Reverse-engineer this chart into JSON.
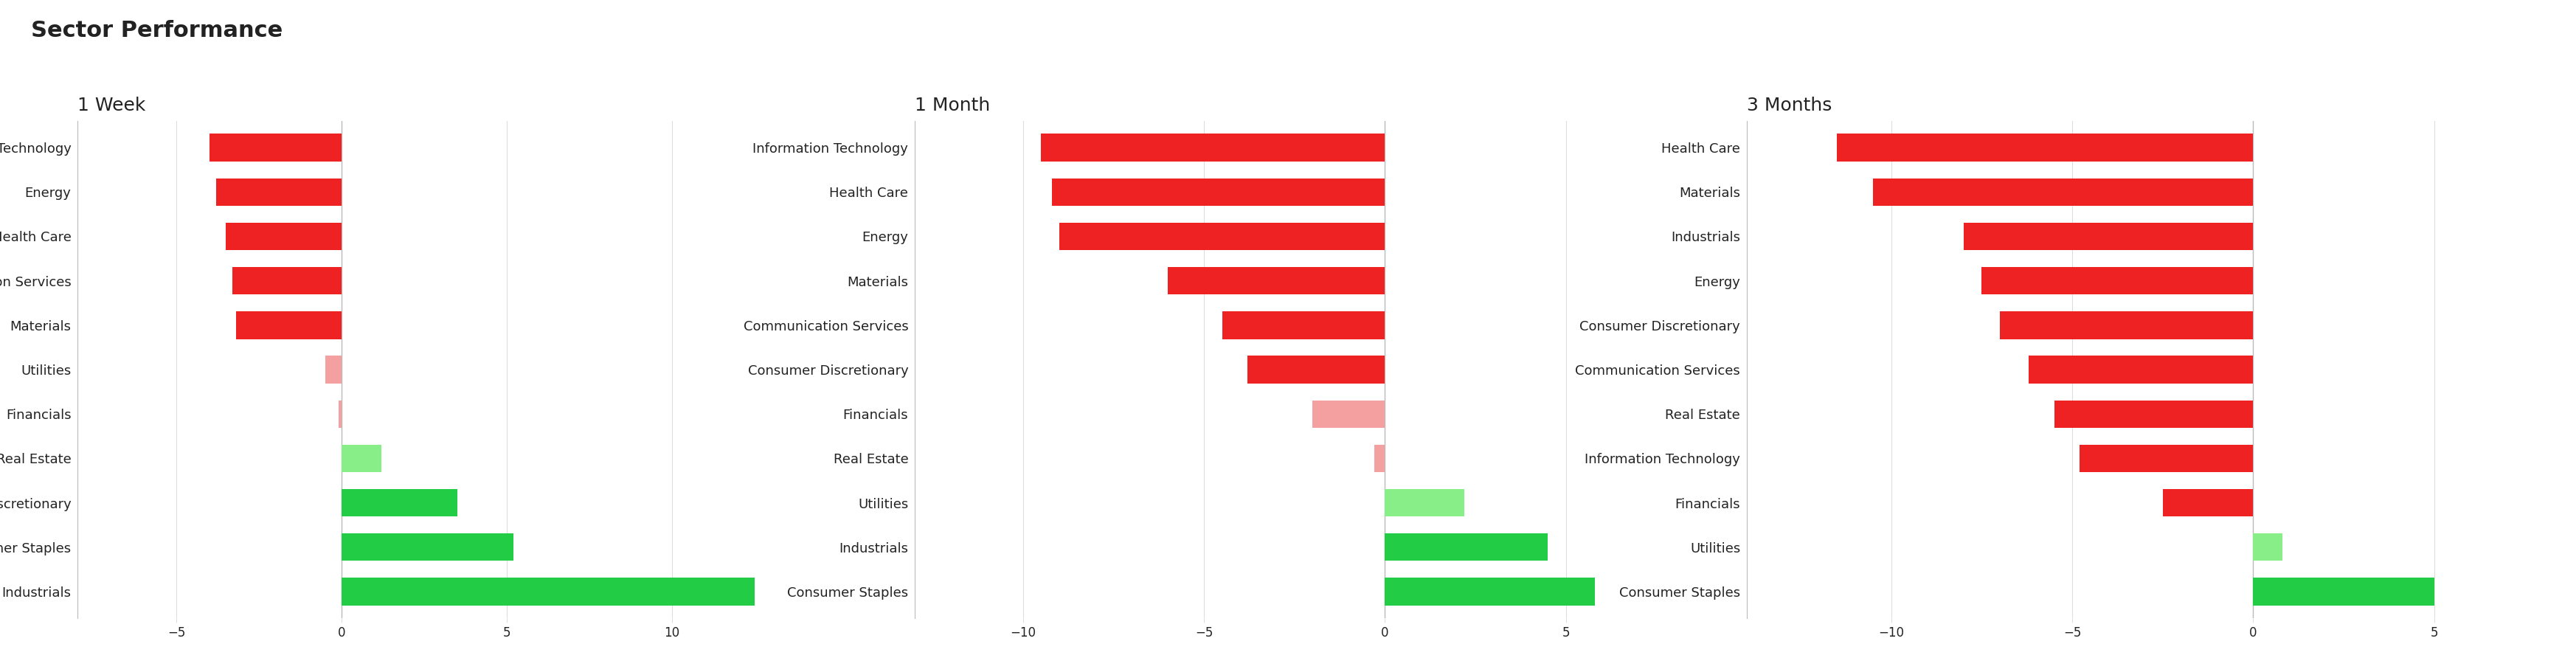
{
  "title": "Sector Performance",
  "panels": [
    {
      "label": "1 Week",
      "categories": [
        "Information Technology",
        "Energy",
        "Health Care",
        "Communication Services",
        "Materials",
        "Utilities",
        "Financials",
        "Real Estate",
        "Consumer Discretionary",
        "Consumer Staples",
        "Industrials"
      ],
      "values": [
        -4.0,
        -3.8,
        -3.5,
        -3.3,
        -3.2,
        -0.5,
        -0.1,
        1.2,
        3.5,
        5.2,
        12.5
      ],
      "xlim": [
        -8,
        15
      ],
      "xticks": [
        -5,
        0,
        5,
        10
      ]
    },
    {
      "label": "1 Month",
      "categories": [
        "Information Technology",
        "Health Care",
        "Energy",
        "Materials",
        "Communication Services",
        "Consumer Discretionary",
        "Financials",
        "Real Estate",
        "Utilities",
        "Industrials",
        "Consumer Staples"
      ],
      "values": [
        -9.5,
        -9.2,
        -9.0,
        -6.0,
        -4.5,
        -3.8,
        -2.0,
        -0.3,
        2.2,
        4.5,
        5.8
      ],
      "xlim": [
        -13,
        8
      ],
      "xticks": [
        -10,
        -5,
        0,
        5
      ]
    },
    {
      "label": "3 Months",
      "categories": [
        "Health Care",
        "Materials",
        "Industrials",
        "Energy",
        "Consumer Discretionary",
        "Communication Services",
        "Real Estate",
        "Information Technology",
        "Financials",
        "Utilities",
        "Consumer Staples"
      ],
      "values": [
        -11.5,
        -10.5,
        -8.0,
        -7.5,
        -7.0,
        -6.2,
        -5.5,
        -4.8,
        -2.5,
        0.8,
        5.0
      ],
      "xlim": [
        -14,
        7
      ],
      "xticks": [
        -10,
        -5,
        0,
        5
      ]
    }
  ],
  "bg_color": "#ffffff",
  "title_fontsize": 22,
  "subtitle_fontsize": 18,
  "bar_height": 0.62,
  "label_fontsize": 13,
  "tick_fontsize": 12,
  "grid_color": "#dddddd",
  "strong_red": "#ee2222",
  "light_red": "#f5a0a0",
  "strong_green": "#22cc44",
  "light_green": "#88ee88",
  "text_color": "#222222",
  "axis_line_color": "#bbbbbb",
  "strong_threshold": 2.5
}
